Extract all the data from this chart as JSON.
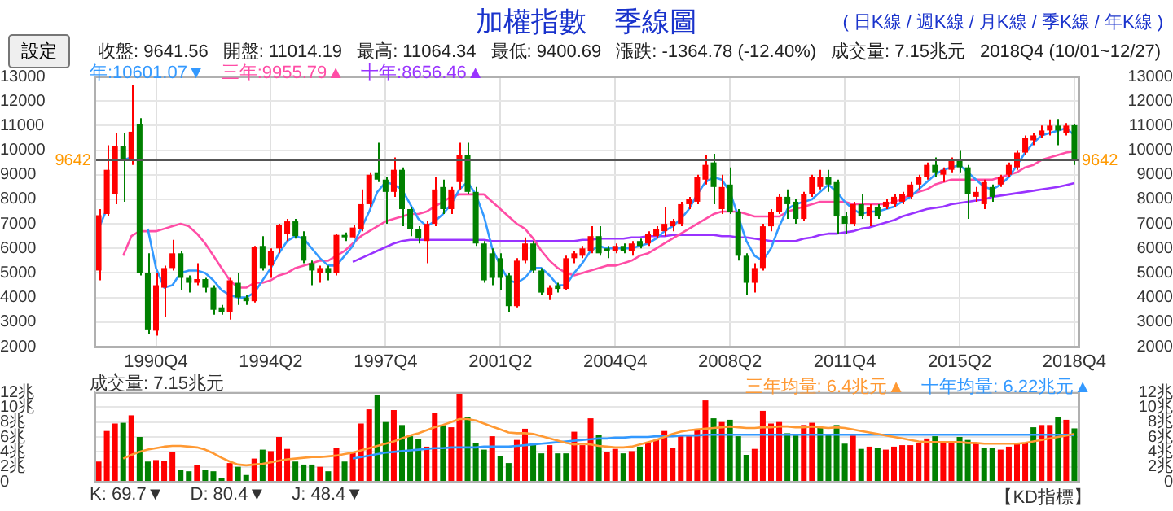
{
  "chart_data": [
    {
      "type": "candlestick",
      "title": "加權指數　季線圖",
      "subtitle": "( 日K線 / 週K線 / 月K線 / 季K線 / 年K線 )",
      "annotations": [
        "設定",
        "收盤: 9641.56",
        "開盤: 11014.19",
        "最高: 11064.34",
        "最低: 9400.69",
        "漲跌: -1364.78 (-12.40%)",
        "成交量: 7.15兆元",
        "2018Q4 (10/01~12/27)"
      ],
      "categories": [
        null,
        null,
        null,
        null,
        null,
        null,
        null,
        "1990Q4",
        null,
        null,
        null,
        null,
        null,
        null,
        null,
        null,
        null,
        null,
        null,
        null,
        null,
        "1994Q2",
        null,
        null,
        null,
        null,
        null,
        null,
        null,
        null,
        null,
        null,
        null,
        null,
        null,
        "1997Q4",
        null,
        null,
        null,
        null,
        null,
        null,
        null,
        null,
        null,
        null,
        null,
        null,
        null,
        "2001Q2",
        null,
        null,
        null,
        null,
        null,
        null,
        null,
        null,
        null,
        null,
        null,
        null,
        null,
        "2004Q4",
        null,
        null,
        null,
        null,
        null,
        null,
        null,
        null,
        null,
        null,
        null,
        null,
        null,
        "2008Q2",
        null,
        null,
        null,
        null,
        null,
        null,
        null,
        null,
        null,
        null,
        null,
        null,
        null,
        "2011Q4",
        null,
        null,
        null,
        null,
        null,
        null,
        null,
        null,
        null,
        null,
        null,
        null,
        null,
        "2015Q2",
        null,
        null,
        null,
        null,
        null,
        null,
        null,
        null,
        null,
        null,
        null,
        null,
        null,
        "2018Q4"
      ],
      "ohlc": [
        [
          5100,
          7600,
          4700,
          7350
        ],
        [
          7400,
          10200,
          7300,
          9200
        ],
        [
          8200,
          10700,
          7800,
          10150
        ],
        [
          10150,
          10700,
          7900,
          9600
        ],
        [
          9600,
          12650,
          9400,
          10750
        ],
        [
          11050,
          11300,
          4900,
          5000
        ],
        [
          5000,
          5800,
          2500,
          2700
        ],
        [
          2650,
          5000,
          2450,
          4500
        ],
        [
          4400,
          5300,
          3200,
          5200
        ],
        [
          5200,
          6350,
          5100,
          5800
        ],
        [
          5800,
          5900,
          4300,
          4800
        ],
        [
          4800,
          4900,
          4200,
          4600
        ],
        [
          4600,
          5400,
          4500,
          4750
        ],
        [
          4750,
          4800,
          4200,
          4400
        ],
        [
          4400,
          4500,
          3300,
          3500
        ],
        [
          3600,
          3700,
          3300,
          3400
        ],
        [
          3400,
          4800,
          3100,
          4700
        ],
        [
          4600,
          5000,
          3700,
          4000
        ],
        [
          4000,
          4100,
          3700,
          3850
        ],
        [
          3850,
          6100,
          3800,
          6050
        ],
        [
          6100,
          6500,
          5100,
          5200
        ],
        [
          5300,
          6000,
          4800,
          5900
        ],
        [
          6000,
          7000,
          5800,
          6950
        ],
        [
          6600,
          7200,
          6300,
          7100
        ],
        [
          7100,
          7200,
          6400,
          6500
        ],
        [
          6500,
          6700,
          5400,
          5500
        ],
        [
          5400,
          5500,
          4500,
          5100
        ],
        [
          5000,
          5300,
          4600,
          5200
        ],
        [
          5200,
          5300,
          4700,
          5000
        ],
        [
          5000,
          6600,
          4900,
          6550
        ],
        [
          6550,
          6650,
          6300,
          6450
        ],
        [
          6450,
          6950,
          6400,
          6850
        ],
        [
          6800,
          8400,
          6700,
          7800
        ],
        [
          7800,
          9100,
          7700,
          9000
        ],
        [
          9100,
          10300,
          8700,
          8800
        ],
        [
          8800,
          8900,
          7000,
          8300
        ],
        [
          8300,
          9700,
          8100,
          9200
        ],
        [
          9200,
          9300,
          6900,
          7600
        ],
        [
          7600,
          7700,
          6500,
          6800
        ],
        [
          6800,
          6900,
          6200,
          6400
        ],
        [
          6300,
          7100,
          5400,
          7000
        ],
        [
          7000,
          8900,
          6900,
          8400
        ],
        [
          8500,
          8800,
          7400,
          7600
        ],
        [
          7600,
          8500,
          7400,
          8400
        ],
        [
          8700,
          10300,
          8400,
          9800
        ],
        [
          9800,
          10300,
          8200,
          8300
        ],
        [
          8300,
          8500,
          6100,
          6200
        ],
        [
          6200,
          6300,
          4600,
          4700
        ],
        [
          5800,
          6000,
          4500,
          4800
        ],
        [
          5600,
          5800,
          4300,
          4800
        ],
        [
          4900,
          5000,
          3400,
          3650
        ],
        [
          3650,
          5600,
          3600,
          5500
        ],
        [
          5500,
          6450,
          5400,
          6200
        ],
        [
          6200,
          6300,
          5000,
          5100
        ],
        [
          5100,
          5200,
          4100,
          4200
        ],
        [
          4100,
          4500,
          3900,
          4400
        ],
        [
          4500,
          4600,
          4200,
          4350
        ],
        [
          4350,
          5700,
          4300,
          5600
        ],
        [
          5600,
          5900,
          5400,
          5800
        ],
        [
          5700,
          6100,
          5600,
          6000
        ],
        [
          5900,
          6900,
          5800,
          6500
        ],
        [
          6500,
          6900,
          5700,
          5800
        ],
        [
          6000,
          6100,
          5600,
          5900
        ],
        [
          5900,
          6200,
          5800,
          6100
        ],
        [
          6100,
          6200,
          5800,
          5900
        ],
        [
          5900,
          6300,
          5700,
          6200
        ],
        [
          6300,
          6400,
          6000,
          6100
        ],
        [
          6200,
          6700,
          6100,
          6600
        ],
        [
          6500,
          6900,
          6400,
          6800
        ],
        [
          6700,
          7700,
          6500,
          7000
        ],
        [
          6900,
          7200,
          6700,
          7100
        ],
        [
          7000,
          7900,
          6900,
          7800
        ],
        [
          7800,
          8100,
          7600,
          8000
        ],
        [
          7900,
          9000,
          7800,
          8900
        ],
        [
          8800,
          9800,
          8600,
          9400
        ],
        [
          9500,
          9850,
          7800,
          8500
        ],
        [
          7600,
          9000,
          7400,
          8500
        ],
        [
          8600,
          9300,
          7400,
          7500
        ],
        [
          7500,
          7600,
          5500,
          5700
        ],
        [
          5700,
          5800,
          4100,
          4600
        ],
        [
          4600,
          5400,
          4200,
          5200
        ],
        [
          5200,
          7000,
          5100,
          6900
        ],
        [
          6900,
          7600,
          6700,
          7500
        ],
        [
          7500,
          8200,
          7400,
          8100
        ],
        [
          8100,
          8400,
          7200,
          7800
        ],
        [
          7900,
          8000,
          7000,
          7200
        ],
        [
          7200,
          8300,
          7100,
          8200
        ],
        [
          8200,
          9000,
          8100,
          8900
        ],
        [
          8500,
          9200,
          8400,
          8900
        ],
        [
          8900,
          9200,
          8300,
          8600
        ],
        [
          8700,
          8800,
          6600,
          7300
        ],
        [
          7300,
          7500,
          6600,
          7000
        ],
        [
          7000,
          7900,
          6900,
          7800
        ],
        [
          7800,
          8200,
          7200,
          7300
        ],
        [
          7300,
          7800,
          6900,
          7700
        ],
        [
          7700,
          7800,
          7200,
          7300
        ],
        [
          7700,
          8000,
          7600,
          7900
        ],
        [
          7800,
          8200,
          7700,
          8100
        ],
        [
          7900,
          8300,
          7800,
          8200
        ],
        [
          8100,
          8700,
          8000,
          8600
        ],
        [
          8600,
          9000,
          8400,
          8900
        ],
        [
          8900,
          9500,
          8800,
          9400
        ],
        [
          9400,
          9700,
          8900,
          9100
        ],
        [
          9000,
          9300,
          8700,
          9200
        ],
        [
          9200,
          9700,
          9100,
          9600
        ],
        [
          9600,
          10000,
          9100,
          9300
        ],
        [
          9300,
          9400,
          7200,
          8200
        ],
        [
          8100,
          8500,
          7900,
          8300
        ],
        [
          7800,
          8800,
          7600,
          8700
        ],
        [
          8500,
          8600,
          7900,
          8100
        ],
        [
          8600,
          9000,
          8500,
          8900
        ],
        [
          9000,
          9500,
          8900,
          9400
        ],
        [
          9300,
          10000,
          9200,
          9900
        ],
        [
          9900,
          10600,
          9800,
          10500
        ],
        [
          10400,
          10700,
          10200,
          10600
        ],
        [
          10600,
          11000,
          10500,
          10800
        ],
        [
          10800,
          11250,
          10600,
          11000
        ],
        [
          11000,
          11270,
          10200,
          10800
        ],
        [
          10700,
          11100,
          10600,
          11000
        ],
        [
          11014.19,
          11064.34,
          9400.69,
          9641.56
        ]
      ],
      "colors": [
        "#ff0000",
        "#ff0000",
        "#ff0000",
        "#008000",
        "#ff0000",
        "#008000",
        "#008000",
        "#ff0000",
        "#ff0000",
        "#ff0000",
        "#008000",
        "#008000",
        "#ff0000",
        "#008000",
        "#008000",
        "#008000",
        "#ff0000",
        "#008000",
        "#008000",
        "#ff0000",
        "#008000",
        "#ff0000",
        "#ff0000",
        "#ff0000",
        "#008000",
        "#008000",
        "#008000",
        "#ff0000",
        "#008000",
        "#ff0000",
        "#008000",
        "#ff0000",
        "#ff0000",
        "#ff0000",
        "#008000",
        "#008000",
        "#ff0000",
        "#008000",
        "#008000",
        "#008000",
        "#ff0000",
        "#ff0000",
        "#008000",
        "#ff0000",
        "#ff0000",
        "#008000",
        "#008000",
        "#008000",
        "#008000",
        "#008000",
        "#008000",
        "#ff0000",
        "#ff0000",
        "#008000",
        "#008000",
        "#ff0000",
        "#008000",
        "#ff0000",
        "#ff0000",
        "#ff0000",
        "#ff0000",
        "#008000",
        "#008000",
        "#ff0000",
        "#008000",
        "#ff0000",
        "#008000",
        "#ff0000",
        "#ff0000",
        "#ff0000",
        "#ff0000",
        "#ff0000",
        "#ff0000",
        "#ff0000",
        "#ff0000",
        "#008000",
        "#ff0000",
        "#008000",
        "#008000",
        "#008000",
        "#ff0000",
        "#ff0000",
        "#ff0000",
        "#ff0000",
        "#008000",
        "#008000",
        "#ff0000",
        "#ff0000",
        "#ff0000",
        "#008000",
        "#008000",
        "#008000",
        "#ff0000",
        "#008000",
        "#ff0000",
        "#008000",
        "#ff0000",
        "#ff0000",
        "#ff0000",
        "#ff0000",
        "#ff0000",
        "#ff0000",
        "#008000",
        "#ff0000",
        "#ff0000",
        "#008000",
        "#008000",
        "#ff0000",
        "#ff0000",
        "#008000",
        "#ff0000",
        "#ff0000",
        "#ff0000",
        "#ff0000",
        "#ff0000",
        "#ff0000",
        "#ff0000",
        "#008000",
        "#ff0000",
        "#008000"
      ],
      "series": [
        {
          "type": "line",
          "name": "年:10601.07▼",
          "color": "#3399ff",
          "values": [
            6800,
            7600,
            null,
            9600,
            9700,
            null,
            6800,
            5200,
            4400,
            4500,
            5000,
            5100,
            5100,
            5000,
            4700,
            4300,
            4100,
            4000,
            4000,
            4200,
            4700,
            5200,
            5800,
            6300,
            6500,
            6400,
            6000,
            5600,
            5300,
            5300,
            5700,
            6100,
            6800,
            7500,
            8300,
            8700,
            8600,
            8400,
            7800,
            7200,
            6900,
            7100,
            7400,
            7800,
            8400,
            8700,
            8200,
            7300,
            6000,
            5300,
            4700,
            4600,
            4800,
            5200,
            5200,
            4900,
            4500,
            4500,
            5000,
            5400,
            5900,
            6100,
            6000,
            6000,
            6000,
            6000,
            6100,
            6200,
            6400,
            6700,
            6900,
            7200,
            7600,
            8200,
            8700,
            8900,
            8800,
            8300,
            7300,
            6300,
            5700,
            5500,
            6000,
            6900,
            7600,
            7800,
            7900,
            8000,
            8300,
            8600,
            8300,
            7900,
            7600,
            7400,
            7500,
            7500,
            7600,
            7700,
            7900,
            8100,
            8400,
            8700,
            9000,
            9200,
            9300,
            9400,
            9100,
            8800,
            8500,
            8400,
            8600,
            8900,
            9400,
            9900,
            10300,
            10600,
            10700,
            10800,
            10900,
            10601.07
          ]
        },
        {
          "type": "line",
          "name": "三年:9955.79▲",
          "color": "#ff4da6",
          "values": [
            null,
            null,
            null,
            5700,
            6500,
            6700,
            6700,
            6700,
            6800,
            6900,
            7000,
            6900,
            6600,
            6200,
            5700,
            5200,
            4700,
            4400,
            4400,
            4600,
            4600,
            4700,
            4900,
            5000,
            5200,
            5300,
            5400,
            5500,
            5500,
            5700,
            5900,
            6200,
            6500,
            6700,
            6900,
            7100,
            7200,
            7300,
            7400,
            7400,
            7500,
            7700,
            7900,
            8100,
            8200,
            8200,
            8200,
            8200,
            7900,
            7600,
            7300,
            7000,
            6800,
            6400,
            5900,
            5500,
            5200,
            5000,
            4900,
            5000,
            5100,
            5200,
            5300,
            5300,
            5400,
            5500,
            5700,
            5800,
            6000,
            6200,
            6400,
            6600,
            6800,
            7000,
            7200,
            7400,
            7500,
            7500,
            7500,
            7400,
            7300,
            7300,
            7300,
            7300,
            7500,
            7600,
            7700,
            7800,
            7900,
            7900,
            7900,
            7900,
            7800,
            7800,
            7800,
            7800,
            7800,
            7900,
            8000,
            8200,
            8300,
            8400,
            8600,
            8700,
            8800,
            8800,
            8800,
            8800,
            8800,
            8800,
            8900,
            9000,
            9100,
            9300,
            9400,
            9600,
            9700,
            9800,
            9900,
            9955.79
          ]
        },
        {
          "type": "line",
          "name": "十年:8656.46▲",
          "color": "#9933ff",
          "values": [
            null,
            null,
            null,
            null,
            null,
            null,
            null,
            null,
            null,
            null,
            null,
            null,
            null,
            null,
            null,
            null,
            null,
            null,
            null,
            null,
            null,
            null,
            null,
            null,
            null,
            null,
            null,
            null,
            null,
            null,
            null,
            5450,
            5600,
            5750,
            5900,
            6050,
            6200,
            6300,
            6350,
            6350,
            6350,
            6350,
            6350,
            6350,
            6350,
            6350,
            6350,
            6350,
            6300,
            6300,
            6300,
            6300,
            6300,
            6300,
            6300,
            6300,
            6300,
            6300,
            6300,
            6350,
            6350,
            6400,
            6400,
            6400,
            6400,
            6450,
            6450,
            6500,
            6500,
            6500,
            6550,
            6550,
            6550,
            6550,
            6550,
            6550,
            6500,
            6500,
            6450,
            6450,
            6400,
            6350,
            6300,
            6300,
            6300,
            6300,
            6400,
            6450,
            6550,
            6600,
            6600,
            6650,
            6700,
            6800,
            6850,
            6950,
            7050,
            7150,
            7300,
            7400,
            7500,
            7600,
            7650,
            7700,
            7800,
            7850,
            7900,
            7950,
            8000,
            8100,
            8150,
            8200,
            8250,
            8300,
            8350,
            8400,
            8450,
            8500,
            8580,
            8656.46
          ]
        }
      ],
      "ylim": [
        2000,
        13000
      ],
      "yticks": [
        2000,
        3000,
        4000,
        5000,
        6000,
        7000,
        8000,
        9000,
        10000,
        11000,
        12000,
        13000
      ],
      "y2lim": [
        2000,
        13000
      ],
      "y2ticks": [
        2000,
        3000,
        4000,
        5000,
        6000,
        7000,
        8000,
        9000,
        10000,
        11000,
        12000,
        13000
      ],
      "ref_lines": [
        {
          "axis": "y",
          "value": 9642,
          "label": "9642",
          "color": "#555555"
        }
      ],
      "grid": true,
      "legend": "top left"
    },
    {
      "type": "bar",
      "title": "成交量: 7.15兆元",
      "annotations": [
        "K: 69.7▼",
        "D: 80.4▼",
        "J: 48.4▼",
        "【KD指標】"
      ],
      "categories": [
        null,
        null,
        null,
        null,
        null,
        null,
        null,
        null,
        null,
        null,
        null,
        null,
        null,
        null,
        null,
        null,
        null,
        null,
        null,
        null,
        null,
        null,
        null,
        null,
        null,
        null,
        null,
        null,
        null,
        null,
        null,
        null,
        null,
        null,
        null,
        null,
        null,
        null,
        null,
        null,
        null,
        null,
        null,
        null,
        null,
        null,
        null,
        null,
        null,
        null,
        null,
        null,
        null,
        null,
        null,
        null,
        null,
        null,
        null,
        null,
        null,
        null,
        null,
        null,
        null,
        null,
        null,
        null,
        null,
        null,
        null,
        null,
        null,
        null,
        null,
        null,
        null,
        null,
        null,
        null,
        null,
        null,
        null,
        null,
        null,
        null,
        null,
        null,
        null,
        null,
        null,
        null,
        null,
        null,
        null,
        null,
        null,
        null,
        null,
        null,
        null,
        null,
        null,
        null,
        null,
        null,
        null,
        null,
        null,
        null,
        null,
        null,
        null,
        null,
        null,
        null,
        null,
        null,
        null,
        null
      ],
      "series": [
        {
          "type": "bar",
          "values": [
            2.7,
            6.8,
            7.8,
            7.9,
            8.9,
            6.0,
            2.7,
            2.9,
            2.8,
            4.0,
            1.6,
            1.4,
            2.2,
            1.6,
            1.4,
            0.5,
            2.5,
            2.0,
            0.9,
            3.1,
            4.3,
            4.1,
            6.0,
            4.4,
            2.7,
            2.3,
            2.3,
            2.0,
            1.4,
            4.5,
            2.7,
            3.9,
            7.8,
            9.7,
            11.6,
            8.0,
            9.6,
            7.6,
            6.1,
            5.7,
            4.7,
            9.2,
            7.6,
            7.3,
            11.8,
            8.7,
            5.2,
            4.3,
            6.1,
            3.4,
            2.5,
            5.6,
            7.1,
            5.2,
            3.8,
            4.9,
            3.8,
            3.8,
            6.7,
            4.9,
            8.5,
            6.3,
            4.0,
            4.4,
            3.8,
            4.1,
            4.7,
            5.2,
            5.6,
            6.8,
            4.5,
            6.1,
            6.1,
            7.1,
            10.9,
            8.5,
            8.0,
            8.3,
            6.1,
            3.6,
            4.4,
            9.5,
            7.8,
            8.0,
            6.5,
            6.2,
            7.6,
            7.9,
            7.2,
            6.3,
            7.6,
            5.1,
            6.2,
            4.4,
            4.7,
            4.5,
            4.3,
            4.7,
            4.9,
            4.9,
            5.2,
            5.8,
            6.1,
            5.2,
            5.2,
            6.0,
            5.6,
            5.2,
            4.5,
            4.5,
            4.3,
            4.7,
            5.2,
            5.2,
            7.3,
            7.6,
            7.6,
            8.7,
            8.3,
            7.15
          ],
          "colors": [
            "#ff0000",
            "#ff0000",
            "#ff0000",
            "#008000",
            "#ff0000",
            "#008000",
            "#008000",
            "#ff0000",
            "#ff0000",
            "#ff0000",
            "#008000",
            "#008000",
            "#ff0000",
            "#008000",
            "#008000",
            "#008000",
            "#ff0000",
            "#008000",
            "#008000",
            "#ff0000",
            "#008000",
            "#ff0000",
            "#ff0000",
            "#ff0000",
            "#008000",
            "#008000",
            "#008000",
            "#ff0000",
            "#008000",
            "#ff0000",
            "#008000",
            "#ff0000",
            "#ff0000",
            "#ff0000",
            "#008000",
            "#008000",
            "#ff0000",
            "#008000",
            "#008000",
            "#008000",
            "#ff0000",
            "#ff0000",
            "#008000",
            "#ff0000",
            "#ff0000",
            "#008000",
            "#008000",
            "#008000",
            "#ff0000",
            "#008000",
            "#008000",
            "#ff0000",
            "#ff0000",
            "#008000",
            "#008000",
            "#ff0000",
            "#008000",
            "#008000",
            "#ff0000",
            "#ff0000",
            "#ff0000",
            "#008000",
            "#ff0000",
            "#ff0000",
            "#008000",
            "#ff0000",
            "#008000",
            "#ff0000",
            "#ff0000",
            "#ff0000",
            "#ff0000",
            "#ff0000",
            "#ff0000",
            "#ff0000",
            "#ff0000",
            "#008000",
            "#ff0000",
            "#008000",
            "#008000",
            "#008000",
            "#ff0000",
            "#ff0000",
            "#ff0000",
            "#ff0000",
            "#008000",
            "#008000",
            "#ff0000",
            "#ff0000",
            "#008000",
            "#008000",
            "#008000",
            "#008000",
            "#ff0000",
            "#008000",
            "#ff0000",
            "#008000",
            "#ff0000",
            "#ff0000",
            "#ff0000",
            "#ff0000",
            "#ff0000",
            "#ff0000",
            "#008000",
            "#ff0000",
            "#ff0000",
            "#008000",
            "#008000",
            "#ff0000",
            "#008000",
            "#008000",
            "#ff0000",
            "#ff0000",
            "#ff0000",
            "#ff0000",
            "#008000",
            "#ff0000",
            "#ff0000",
            "#008000",
            "#ff0000",
            "#008000"
          ]
        },
        {
          "type": "line",
          "name": "三年均量: 6.4兆元▲",
          "color": "#ff9933",
          "values": [
            null,
            null,
            null,
            3.1,
            3.6,
            4.0,
            4.3,
            4.5,
            4.7,
            4.8,
            4.8,
            4.7,
            4.6,
            4.3,
            3.8,
            3.2,
            2.7,
            2.3,
            2.2,
            2.3,
            2.4,
            2.6,
            2.8,
            3.0,
            3.1,
            3.2,
            3.3,
            3.3,
            3.4,
            3.5,
            3.7,
            3.9,
            4.2,
            4.5,
            4.8,
            5.1,
            5.4,
            5.8,
            6.2,
            6.5,
            6.9,
            7.3,
            7.6,
            8.0,
            8.4,
            8.4,
            8.2,
            7.8,
            7.4,
            7.0,
            6.6,
            6.5,
            6.5,
            6.4,
            6.1,
            5.8,
            5.5,
            5.2,
            5.0,
            5.1,
            5.0,
            4.8,
            4.7,
            4.6,
            4.6,
            4.7,
            5.0,
            5.3,
            5.6,
            6.0,
            6.4,
            6.7,
            6.9,
            7.0,
            7.1,
            7.2,
            7.3,
            7.4,
            7.3,
            7.2,
            7.2,
            7.3,
            7.3,
            7.4,
            7.4,
            7.3,
            7.3,
            7.4,
            7.3,
            7.2,
            7.3,
            7.2,
            7.0,
            6.8,
            6.6,
            6.4,
            6.2,
            6.0,
            5.8,
            5.6,
            5.4,
            5.3,
            5.3,
            5.3,
            5.3,
            5.3,
            5.2,
            5.2,
            5.1,
            5.1,
            5.1,
            5.1,
            5.1,
            5.2,
            5.4,
            5.6,
            5.8,
            6.0,
            6.2,
            6.4
          ]
        },
        {
          "type": "line",
          "name": "十年均量: 6.22兆元▲",
          "color": "#3399ff",
          "values": [
            null,
            null,
            null,
            null,
            null,
            null,
            null,
            null,
            null,
            null,
            null,
            null,
            null,
            null,
            null,
            null,
            null,
            null,
            null,
            null,
            null,
            null,
            null,
            null,
            null,
            null,
            null,
            null,
            null,
            null,
            null,
            3.1,
            3.3,
            3.5,
            3.7,
            3.9,
            4.0,
            4.1,
            4.2,
            4.3,
            4.4,
            4.5,
            4.5,
            4.6,
            4.6,
            4.6,
            4.6,
            4.7,
            4.7,
            4.7,
            4.7,
            4.8,
            4.9,
            5.0,
            5.1,
            5.2,
            5.3,
            5.4,
            5.5,
            5.6,
            5.7,
            5.8,
            5.8,
            5.9,
            5.9,
            6.0,
            6.0,
            6.0,
            6.1,
            6.1,
            6.1,
            6.2,
            6.2,
            6.2,
            6.3,
            6.3,
            6.3,
            6.3,
            6.3,
            6.3,
            6.3,
            6.3,
            6.3,
            6.3,
            6.3,
            6.3,
            6.3,
            6.3,
            6.3,
            6.3,
            6.3,
            6.3,
            6.3,
            6.3,
            6.3,
            6.3,
            6.3,
            6.3,
            6.3,
            6.3,
            6.3,
            6.3,
            6.3,
            6.3,
            6.3,
            6.3,
            6.3,
            6.3,
            6.3,
            6.3,
            6.3,
            6.3,
            6.3,
            6.3,
            6.3,
            6.3,
            6.3,
            6.3,
            6.3,
            6.22
          ]
        }
      ],
      "ylim": [
        0,
        12
      ],
      "yticks": [
        0,
        {
          "value": 2,
          "label": "2兆"
        },
        {
          "value": 4,
          "label": "4兆"
        },
        {
          "value": 6,
          "label": "6兆"
        },
        {
          "value": 8,
          "label": "8兆"
        },
        {
          "value": 10,
          "label": "10兆"
        },
        {
          "value": 12,
          "label": "12兆"
        }
      ],
      "y2lim": [
        0,
        12
      ],
      "y2ticks": [
        0,
        {
          "value": 2,
          "label": "2兆"
        },
        {
          "value": 4,
          "label": "4兆"
        },
        {
          "value": 6,
          "label": "6兆"
        },
        {
          "value": 8,
          "label": "8兆"
        },
        {
          "value": 10,
          "label": "10兆"
        },
        {
          "value": 12,
          "label": "12兆"
        }
      ],
      "tick_labels": "y",
      "grid": "y",
      "legend": "top right"
    }
  ]
}
